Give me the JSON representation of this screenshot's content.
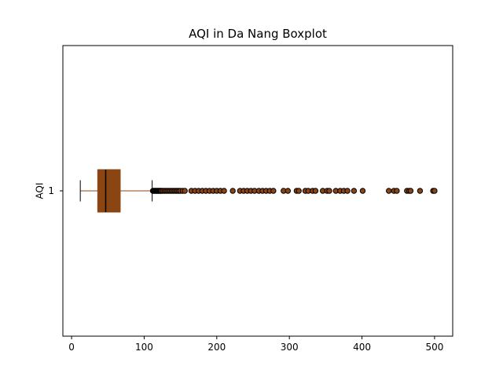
{
  "chart_data": {
    "type": "boxplot",
    "orientation": "horizontal",
    "title": "AQI in Da Nang Boxplot",
    "xlabel": "",
    "ylabel": "AQI",
    "xlim": [
      -12,
      525
    ],
    "x_ticks": [
      0,
      100,
      200,
      300,
      400,
      500
    ],
    "y_ticks": [
      "1"
    ],
    "series": [
      {
        "category": "1",
        "whisker_low": 12,
        "q1": 36,
        "median": 47,
        "q3": 67,
        "whisker_high": 111,
        "outliers": [
          112,
          113,
          114,
          115,
          116,
          117,
          118,
          119,
          120,
          121,
          122,
          123,
          124,
          126,
          128,
          130,
          132,
          134,
          136,
          138,
          140,
          142,
          144,
          146,
          148,
          150,
          153,
          156,
          165,
          170,
          175,
          180,
          185,
          190,
          195,
          200,
          205,
          210,
          222,
          232,
          237,
          242,
          247,
          252,
          258,
          263,
          268,
          273,
          278,
          292,
          298,
          310,
          313,
          322,
          326,
          332,
          336,
          346,
          352,
          355,
          364,
          370,
          375,
          380,
          389,
          401,
          437,
          444,
          448,
          462,
          465,
          467,
          480,
          498,
          500
        ]
      }
    ],
    "colors": {
      "box_fill": "#8B4513",
      "box_edge": "#8B4513",
      "median": "#000000",
      "whisker": "#8B4513",
      "cap": "#000000",
      "outlier_fill": "#8B4513",
      "outlier_edge": "#000000"
    },
    "grid": false,
    "legend": "none"
  }
}
